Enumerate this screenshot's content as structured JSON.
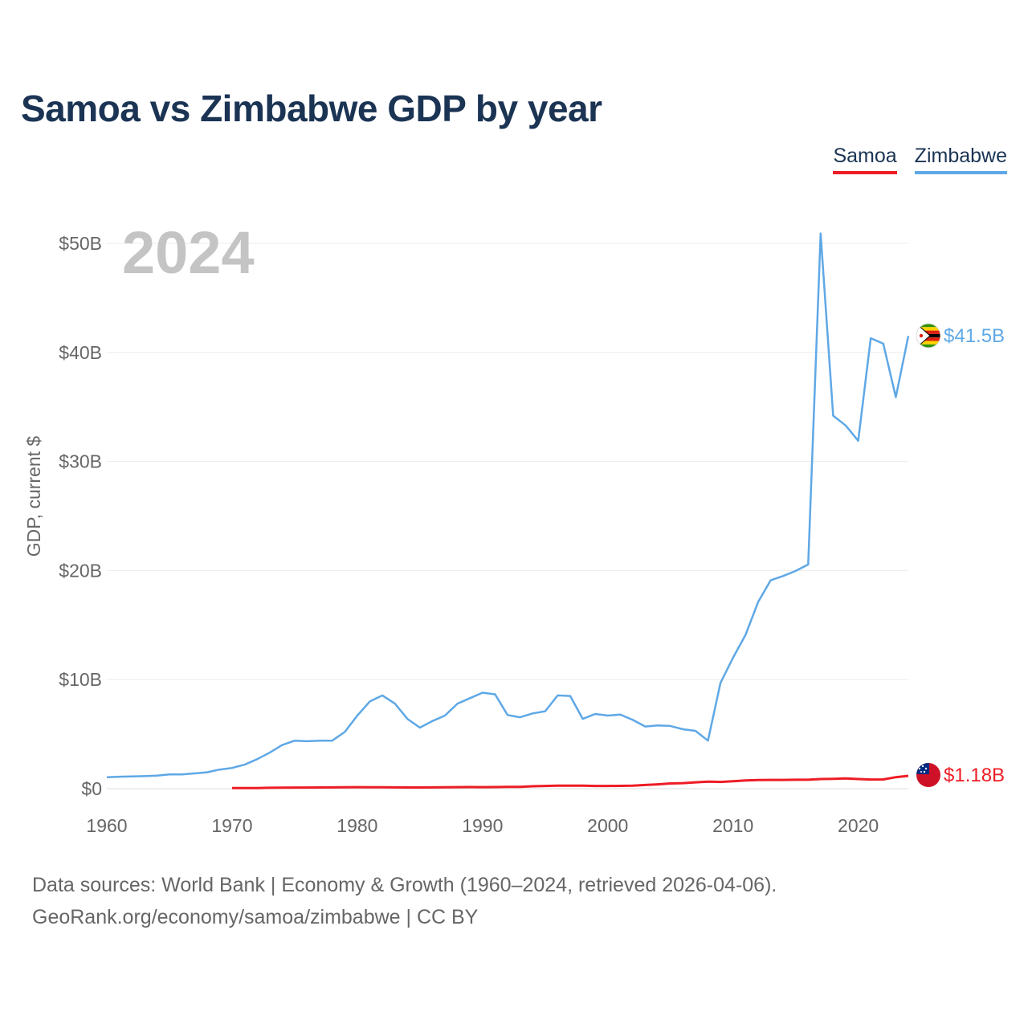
{
  "chart_data": {
    "type": "line",
    "title": "Samoa vs Zimbabwe GDP by year",
    "year_label": "2024",
    "ylabel": "GDP, current $",
    "xlabel": "",
    "xlim": [
      1960,
      2024
    ],
    "ylim": [
      0,
      52
    ],
    "x_ticks": [
      1960,
      1970,
      1980,
      1990,
      2000,
      2010,
      2020
    ],
    "x_tick_labels": [
      "1960",
      "1970",
      "1980",
      "1990",
      "2000",
      "2010",
      "2020"
    ],
    "y_ticks": [
      0,
      10,
      20,
      30,
      40,
      50
    ],
    "y_tick_labels": [
      "$0",
      "$10B",
      "$20B",
      "$30B",
      "$40B",
      "$50B"
    ],
    "unit": "billions of current US$",
    "series": [
      {
        "name": "Samoa",
        "color": "#ee1c25",
        "flag": "samoa-flag-icon",
        "end_label": "$1.18B",
        "x": [
          1970,
          1971,
          1972,
          1973,
          1974,
          1975,
          1976,
          1977,
          1978,
          1979,
          1980,
          1981,
          1982,
          1983,
          1984,
          1985,
          1986,
          1987,
          1988,
          1989,
          1990,
          1991,
          1992,
          1993,
          1994,
          1995,
          1996,
          1997,
          1998,
          1999,
          2000,
          2001,
          2002,
          2003,
          2004,
          2005,
          2006,
          2007,
          2008,
          2009,
          2010,
          2011,
          2012,
          2013,
          2014,
          2015,
          2016,
          2017,
          2018,
          2019,
          2020,
          2021,
          2022,
          2023,
          2024
        ],
        "values": [
          0.05,
          0.05,
          0.06,
          0.08,
          0.09,
          0.1,
          0.1,
          0.11,
          0.12,
          0.13,
          0.14,
          0.13,
          0.13,
          0.12,
          0.11,
          0.11,
          0.12,
          0.13,
          0.14,
          0.15,
          0.14,
          0.15,
          0.16,
          0.16,
          0.22,
          0.25,
          0.27,
          0.28,
          0.27,
          0.25,
          0.25,
          0.26,
          0.28,
          0.34,
          0.4,
          0.48,
          0.51,
          0.58,
          0.65,
          0.62,
          0.68,
          0.76,
          0.79,
          0.8,
          0.8,
          0.82,
          0.82,
          0.88,
          0.9,
          0.94,
          0.88,
          0.84,
          0.85,
          1.05,
          1.18
        ]
      },
      {
        "name": "Zimbabwe",
        "color": "#5fa8e6",
        "flag": "zimbabwe-flag-icon",
        "end_label": "$41.5B",
        "x": [
          1960,
          1961,
          1962,
          1963,
          1964,
          1965,
          1966,
          1967,
          1968,
          1969,
          1970,
          1971,
          1972,
          1973,
          1974,
          1975,
          1976,
          1977,
          1978,
          1979,
          1980,
          1981,
          1982,
          1983,
          1984,
          1985,
          1986,
          1987,
          1988,
          1989,
          1990,
          1991,
          1992,
          1993,
          1994,
          1995,
          1996,
          1997,
          1998,
          1999,
          2000,
          2001,
          2002,
          2003,
          2004,
          2005,
          2006,
          2007,
          2008,
          2009,
          2010,
          2011,
          2012,
          2013,
          2014,
          2015,
          2016,
          2017,
          2018,
          2019,
          2020,
          2021,
          2022,
          2023,
          2024
        ],
        "values": [
          1.05,
          1.1,
          1.12,
          1.15,
          1.2,
          1.3,
          1.3,
          1.4,
          1.5,
          1.75,
          1.9,
          2.2,
          2.7,
          3.3,
          4.0,
          4.4,
          4.35,
          4.4,
          4.4,
          5.2,
          6.7,
          8.0,
          8.55,
          7.8,
          6.4,
          5.6,
          6.2,
          6.7,
          7.8,
          8.3,
          8.8,
          8.65,
          6.75,
          6.55,
          6.9,
          7.1,
          8.55,
          8.5,
          6.4,
          6.85,
          6.7,
          6.8,
          6.3,
          5.7,
          5.8,
          5.75,
          5.45,
          5.3,
          4.4,
          9.7,
          12.0,
          14.1,
          17.1,
          19.1,
          19.5,
          19.96,
          20.55,
          50.9,
          34.2,
          33.3,
          31.9,
          41.3,
          40.8,
          35.9,
          41.5
        ]
      }
    ]
  },
  "legend": {
    "samoa_label": "Samoa",
    "zimbabwe_label": "Zimbabwe",
    "samoa_color": "#ee1c25",
    "zimbabwe_color": "#5fa8e6"
  },
  "footer": {
    "line1": "Data sources: World Bank | Economy & Growth (1960–2024, retrieved 2026-04-06).",
    "line2": "GeoRank.org/economy/samoa/zimbabwe | CC BY"
  }
}
